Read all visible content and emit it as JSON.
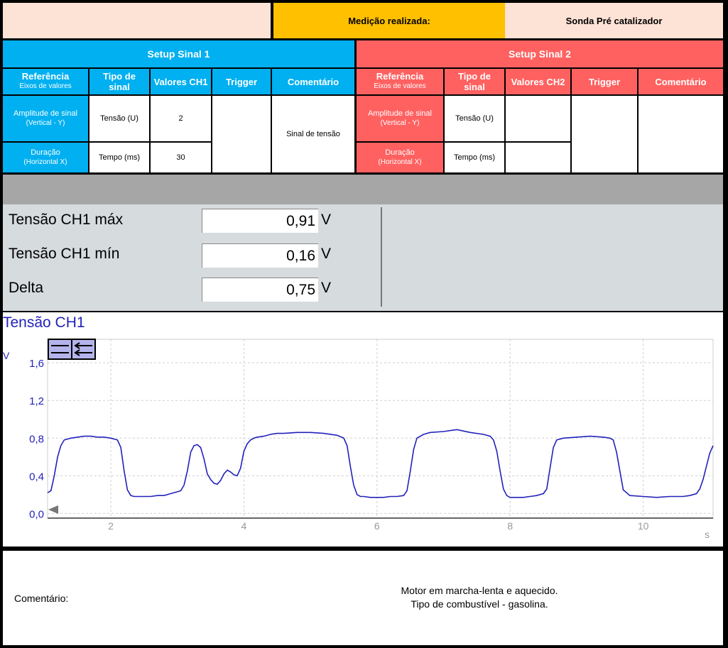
{
  "top": {
    "measurement_label": "Medição realizada:",
    "measurement_value": "Sonda Pré catalizador"
  },
  "setup1": {
    "title": "Setup Sinal 1",
    "headers": {
      "ref_title": "Referência",
      "ref_sub": "Eixos de valores",
      "tipo": "Tipo de sinal",
      "valores": "Valores CH1",
      "trigger": "Trigger",
      "comentario": "Comentário"
    },
    "rows": [
      {
        "label": "Amplitude de sinal",
        "sub": "(Vertical - Y)",
        "tipo": "Tensão (U)",
        "valor": "2"
      },
      {
        "label": "Duração",
        "sub": "(Horizontal X)",
        "tipo": "Tempo (ms)",
        "valor": "30"
      }
    ],
    "comment": "Sinal de tensão"
  },
  "setup2": {
    "title": "Setup Sinal 2",
    "headers": {
      "ref_title": "Referência",
      "ref_sub": "Eixos de valores",
      "tipo": "Tipo de sinal",
      "valores": "Valores CH2",
      "trigger": "Trigger",
      "comentario": "Comentário"
    },
    "rows": [
      {
        "label": "Amplitude de sinal",
        "sub": "(Vertical - Y)",
        "tipo": "Tensão (U)",
        "valor": ""
      },
      {
        "label": "Duração",
        "sub": "(Horizontal X)",
        "tipo": "Tempo (ms)",
        "valor": ""
      }
    ],
    "comment": ""
  },
  "measurements": [
    {
      "label": "Tensão CH1 máx",
      "value": "0,91",
      "unit": "V"
    },
    {
      "label": "Tensão CH1 mín",
      "value": "0,16",
      "unit": "V"
    },
    {
      "label": "Delta",
      "value": "0,75",
      "unit": "V"
    }
  ],
  "chart_data": {
    "type": "line",
    "title": "Tensão CH1",
    "ylabel": "V",
    "xlabel": "s",
    "xlim": [
      1.05,
      11.05
    ],
    "ylim": [
      -0.05,
      1.85
    ],
    "yticks": [
      "0,0",
      "0,4",
      "0,8",
      "1,2",
      "1,6"
    ],
    "ytick_values": [
      0.0,
      0.4,
      0.8,
      1.2,
      1.6
    ],
    "xticks": [
      "2",
      "4",
      "6",
      "8",
      "10"
    ],
    "xtick_values": [
      2,
      4,
      6,
      8,
      10
    ],
    "grid": true,
    "color": "#2222bb",
    "series": [
      {
        "x": [
          1.05,
          1.1,
          1.15,
          1.2,
          1.25,
          1.3,
          1.4,
          1.5,
          1.6,
          1.7,
          1.8,
          1.9,
          2.0,
          2.1,
          2.15,
          2.2,
          2.25,
          2.3,
          2.35,
          2.4,
          2.5,
          2.6,
          2.7,
          2.8,
          2.9,
          3.0,
          3.05,
          3.1,
          3.15,
          3.2,
          3.25,
          3.3,
          3.35,
          3.4,
          3.45,
          3.5,
          3.55,
          3.6,
          3.65,
          3.7,
          3.75,
          3.8,
          3.85,
          3.9,
          3.95,
          4.0,
          4.05,
          4.1,
          4.15,
          4.2,
          4.3,
          4.4,
          4.5,
          4.6,
          4.8,
          5.0,
          5.2,
          5.4,
          5.5,
          5.55,
          5.6,
          5.65,
          5.7,
          5.75,
          5.8,
          5.9,
          6.0,
          6.1,
          6.2,
          6.3,
          6.4,
          6.45,
          6.5,
          6.55,
          6.6,
          6.7,
          6.8,
          7.0,
          7.2,
          7.4,
          7.6,
          7.7,
          7.75,
          7.8,
          7.85,
          7.9,
          7.95,
          8.0,
          8.1,
          8.2,
          8.3,
          8.4,
          8.5,
          8.55,
          8.6,
          8.65,
          8.7,
          8.8,
          9.0,
          9.2,
          9.4,
          9.5,
          9.55,
          9.6,
          9.65,
          9.7,
          9.8,
          10.0,
          10.2,
          10.4,
          10.6,
          10.7,
          10.8,
          10.85,
          10.9,
          10.95,
          11.0,
          11.05
        ],
        "y": [
          0.22,
          0.24,
          0.4,
          0.6,
          0.72,
          0.78,
          0.8,
          0.81,
          0.82,
          0.82,
          0.81,
          0.81,
          0.8,
          0.78,
          0.7,
          0.45,
          0.25,
          0.19,
          0.18,
          0.18,
          0.18,
          0.18,
          0.19,
          0.19,
          0.21,
          0.23,
          0.24,
          0.3,
          0.45,
          0.65,
          0.72,
          0.73,
          0.7,
          0.58,
          0.42,
          0.36,
          0.32,
          0.31,
          0.35,
          0.42,
          0.46,
          0.44,
          0.41,
          0.4,
          0.48,
          0.66,
          0.74,
          0.78,
          0.8,
          0.81,
          0.82,
          0.84,
          0.85,
          0.85,
          0.86,
          0.86,
          0.85,
          0.83,
          0.8,
          0.72,
          0.5,
          0.3,
          0.2,
          0.18,
          0.18,
          0.17,
          0.17,
          0.17,
          0.18,
          0.18,
          0.19,
          0.24,
          0.45,
          0.68,
          0.8,
          0.84,
          0.86,
          0.87,
          0.89,
          0.86,
          0.84,
          0.82,
          0.78,
          0.66,
          0.45,
          0.26,
          0.19,
          0.17,
          0.17,
          0.17,
          0.18,
          0.19,
          0.21,
          0.26,
          0.48,
          0.7,
          0.78,
          0.8,
          0.81,
          0.82,
          0.81,
          0.8,
          0.78,
          0.65,
          0.45,
          0.25,
          0.19,
          0.18,
          0.17,
          0.18,
          0.18,
          0.19,
          0.21,
          0.26,
          0.36,
          0.5,
          0.64,
          0.72
        ]
      }
    ]
  },
  "comment_section": {
    "label": "Comentário:",
    "line1": "Motor em marcha-lenta e aquecido.",
    "line2": "Tipo de combustível - gasolina."
  }
}
